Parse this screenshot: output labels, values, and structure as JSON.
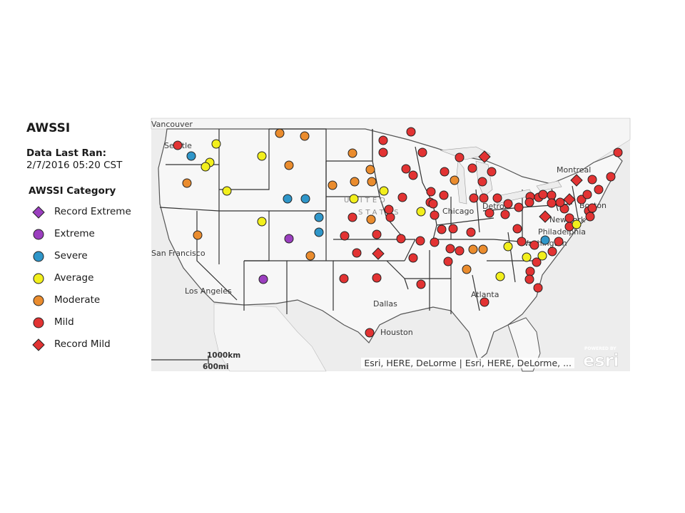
{
  "panel": {
    "title": "AWSSI",
    "last_ran_label": "Data Last Ran:",
    "last_ran_value": "2/7/2016 05:20 CST",
    "legend_title": "AWSSI Category"
  },
  "legend": [
    {
      "label": "Record Extreme",
      "shape": "diamond",
      "color": "#9b3fbf"
    },
    {
      "label": "Extreme",
      "shape": "circle",
      "color": "#9b3fbf"
    },
    {
      "label": "Severe",
      "shape": "circle",
      "color": "#2f96c9"
    },
    {
      "label": "Average",
      "shape": "circle",
      "color": "#f2ef1c"
    },
    {
      "label": "Moderate",
      "shape": "circle",
      "color": "#ea8c2e"
    },
    {
      "label": "Mild",
      "shape": "circle",
      "color": "#e23333"
    },
    {
      "label": "Record Mild",
      "shape": "diamond",
      "color": "#e23333"
    }
  ],
  "map": {
    "city_labels": [
      "Vancouver",
      "Seattle",
      "San Francisco",
      "Los Angeles",
      "Dallas",
      "Houston",
      "Chicago",
      "Detroit",
      "Atlanta",
      "Montreal",
      "Boston",
      "New York",
      "Philadelphia",
      "Washington"
    ],
    "country_label_1": "UNITED",
    "country_label_2": "STATES",
    "scale_km": "1000km",
    "scale_mi": "600mi",
    "attribution": "Esri, HERE, DeLorme | Esri, HERE, DeLorme, ...",
    "logo_powered": "POWERED BY",
    "logo_text": "esri"
  }
}
